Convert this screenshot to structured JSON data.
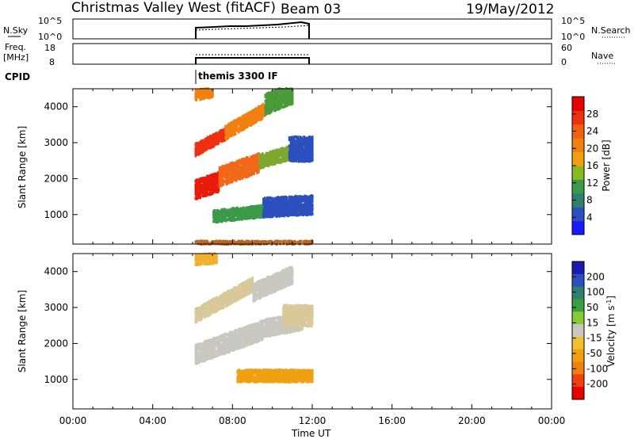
{
  "header": {
    "title": "Christmas Valley West (fitACF)",
    "beam": "Beam 03",
    "date": "19/May/2012"
  },
  "top_panels": {
    "nsky": {
      "label": "N.Sky",
      "left_ticks": [
        "10^5",
        "10^0"
      ],
      "right_ticks": [
        "10^5",
        "10^0"
      ],
      "right_label": "N.Search"
    },
    "freq": {
      "label_line1": "Freq.",
      "label_line2": "[MHz]",
      "left_ticks": [
        "18",
        "8"
      ],
      "right_ticks": [
        "60",
        "0"
      ],
      "right_label": "Nave"
    },
    "cpid": {
      "label": "CPID",
      "program": "themis 3300 IF"
    }
  },
  "chart_data": [
    {
      "type": "heatmap",
      "name": "power",
      "ylabel": "Slant Range [km]",
      "yticks": [
        1000,
        2000,
        3000,
        4000
      ],
      "ylim": [
        180,
        4500
      ],
      "xlim_hours": [
        0,
        24
      ],
      "colorbar": {
        "label": "Power [dB]",
        "ticks": [
          "4",
          "8",
          "12",
          "16",
          "20",
          "24",
          "28"
        ],
        "colors": [
          "#1a1aff",
          "#2c4fbf",
          "#2f7f6f",
          "#3a9a4a",
          "#88bb22",
          "#f0a010",
          "#f08010",
          "#f06010",
          "#ee3010",
          "#e60000"
        ]
      },
      "bands": [
        {
          "t0": 6.1,
          "t1": 7.3,
          "r0": 1450,
          "r1": 2000,
          "slope": 180,
          "color": "#e81a0a"
        },
        {
          "t0": 7.3,
          "t1": 9.3,
          "r0": 1800,
          "r1": 2350,
          "slope": 200,
          "color": "#f06818"
        },
        {
          "t0": 9.3,
          "t1": 11.2,
          "r0": 2300,
          "r1": 2700,
          "slope": 160,
          "color": "#7fa830"
        },
        {
          "t0": 10.8,
          "t1": 12.0,
          "r0": 2500,
          "r1": 3200,
          "slope": 0,
          "color": "#2c4fbf"
        },
        {
          "t0": 6.1,
          "t1": 7.6,
          "r0": 2650,
          "r1": 3000,
          "slope": 300,
          "color": "#ee3010"
        },
        {
          "t0": 7.6,
          "t1": 9.6,
          "r0": 3100,
          "r1": 3500,
          "slope": 320,
          "color": "#f08010"
        },
        {
          "t0": 9.6,
          "t1": 11.0,
          "r0": 3800,
          "r1": 4400,
          "slope": 220,
          "color": "#4a9a3a"
        },
        {
          "t0": 6.1,
          "t1": 7.0,
          "r0": 4200,
          "r1": 4500,
          "slope": 100,
          "color": "#f08010"
        },
        {
          "t0": 7.0,
          "t1": 9.5,
          "r0": 800,
          "r1": 1150,
          "slope": 60,
          "color": "#3a9a4a"
        },
        {
          "t0": 9.5,
          "t1": 12.0,
          "r0": 950,
          "r1": 1500,
          "slope": 30,
          "color": "#2c4fbf"
        },
        {
          "t0": 6.1,
          "t1": 12.0,
          "r0": 180,
          "r1": 300,
          "slope": 0,
          "color": "#bb6622"
        }
      ]
    },
    {
      "type": "heatmap",
      "name": "velocity",
      "ylabel": "Slant Range [km]",
      "yticks": [
        1000,
        2000,
        3000,
        4000
      ],
      "ylim": [
        180,
        4500
      ],
      "xlim_hours": [
        0,
        24
      ],
      "xlabel": "Time UT",
      "xticks": [
        "00:00",
        "04:00",
        "08:00",
        "12:00",
        "16:00",
        "20:00",
        "00:00"
      ],
      "colorbar": {
        "label": "Velocity [m s^-1]",
        "ticks": [
          "200",
          "100",
          "50",
          "15",
          "-15",
          "-50",
          "-100",
          "-200"
        ],
        "colors": [
          "#1a1ab0",
          "#2c4fbf",
          "#2f7f6f",
          "#3aa040",
          "#88cc33",
          "#c8c8c0",
          "#f0c030",
          "#f0a010",
          "#f08010",
          "#f04010",
          "#e60000"
        ]
      },
      "bands": [
        {
          "t0": 6.1,
          "t1": 9.5,
          "r0": 1450,
          "r1": 2000,
          "slope": 200,
          "color": "#c8c8c0"
        },
        {
          "t0": 9.5,
          "t1": 11.5,
          "r0": 2200,
          "r1": 2700,
          "slope": 100,
          "color": "#c8c8c0"
        },
        {
          "t0": 6.1,
          "t1": 9.0,
          "r0": 2600,
          "r1": 3000,
          "slope": 300,
          "color": "#d8c89a"
        },
        {
          "t0": 9.0,
          "t1": 11.0,
          "r0": 3200,
          "r1": 3700,
          "slope": 250,
          "color": "#c8c8c0"
        },
        {
          "t0": 6.1,
          "t1": 7.2,
          "r0": 4200,
          "r1": 4500,
          "slope": 50,
          "color": "#f0b030"
        },
        {
          "t0": 8.2,
          "t1": 12.0,
          "r0": 950,
          "r1": 1300,
          "slope": 0,
          "color": "#f0a010"
        },
        {
          "t0": 10.5,
          "t1": 12.0,
          "r0": 2500,
          "r1": 3100,
          "slope": 0,
          "color": "#d8c89a"
        }
      ]
    }
  ]
}
